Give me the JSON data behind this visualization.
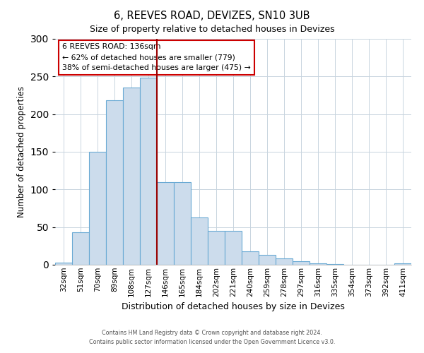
{
  "title": "6, REEVES ROAD, DEVIZES, SN10 3UB",
  "subtitle": "Size of property relative to detached houses in Devizes",
  "xlabel": "Distribution of detached houses by size in Devizes",
  "ylabel": "Number of detached properties",
  "bar_labels": [
    "32sqm",
    "51sqm",
    "70sqm",
    "89sqm",
    "108sqm",
    "127sqm",
    "146sqm",
    "165sqm",
    "184sqm",
    "202sqm",
    "221sqm",
    "240sqm",
    "259sqm",
    "278sqm",
    "297sqm",
    "316sqm",
    "335sqm",
    "354sqm",
    "373sqm",
    "392sqm",
    "411sqm"
  ],
  "bar_values": [
    3,
    43,
    150,
    218,
    235,
    248,
    110,
    110,
    63,
    45,
    45,
    18,
    13,
    8,
    5,
    2,
    1,
    0,
    0,
    0,
    2
  ],
  "bar_color": "#ccdcec",
  "bar_edgecolor": "#6aaad4",
  "vline_x": 5.5,
  "vline_color": "#990000",
  "annotation_title": "6 REEVES ROAD: 136sqm",
  "annotation_line1": "← 62% of detached houses are smaller (779)",
  "annotation_line2": "38% of semi-detached houses are larger (475) →",
  "annotation_box_edgecolor": "#cc0000",
  "ylim": [
    0,
    300
  ],
  "yticks": [
    0,
    50,
    100,
    150,
    200,
    250,
    300
  ],
  "footer1": "Contains HM Land Registry data © Crown copyright and database right 2024.",
  "footer2": "Contains public sector information licensed under the Open Government Licence v3.0."
}
